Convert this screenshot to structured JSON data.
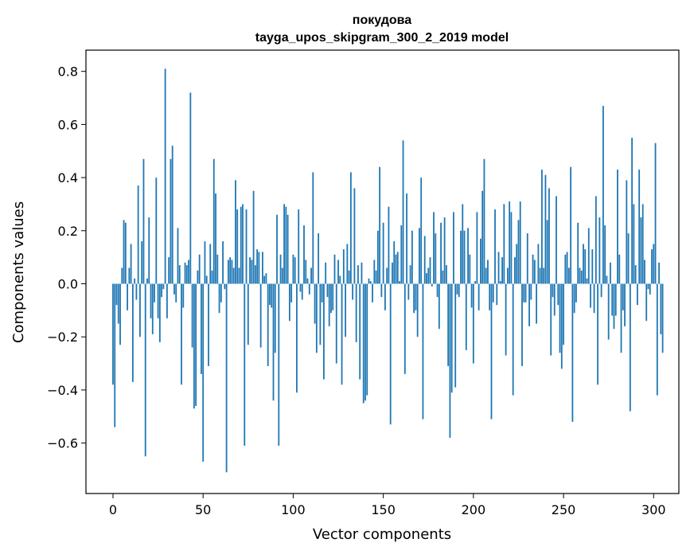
{
  "chart_data": {
    "type": "bar",
    "title": [
      "покудова",
      "tayga_upos_skipgram_300_2_2019 model"
    ],
    "xlabel": "Vector components",
    "ylabel": "Components values",
    "xlim": [
      -15,
      314
    ],
    "ylim": [
      -0.79,
      0.88
    ],
    "xticks": [
      0,
      50,
      100,
      150,
      200,
      250,
      300
    ],
    "xtick_labels": [
      "0",
      "50",
      "100",
      "150",
      "200",
      "250",
      "300"
    ],
    "yticks": [
      -0.6,
      -0.4,
      -0.2,
      0.0,
      0.2,
      0.4,
      0.6,
      0.8
    ],
    "ytick_labels": [
      "−0.6",
      "−0.4",
      "−0.2",
      "0.0",
      "0.2",
      "0.4",
      "0.6",
      "0.8"
    ],
    "grid": false,
    "bar_color": "#1f77b4",
    "values": [
      -0.38,
      -0.54,
      -0.08,
      -0.15,
      -0.23,
      0.06,
      0.24,
      0.23,
      -0.1,
      0.06,
      0.15,
      -0.37,
      0.02,
      -0.06,
      0.37,
      -0.2,
      0.16,
      0.47,
      -0.65,
      0.02,
      0.25,
      -0.13,
      -0.19,
      -0.07,
      0.4,
      -0.13,
      -0.22,
      -0.05,
      -0.02,
      0.81,
      -0.13,
      0.1,
      0.47,
      0.52,
      -0.04,
      -0.07,
      0.21,
      0.07,
      -0.38,
      -0.09,
      0.08,
      0.07,
      0.09,
      0.72,
      -0.24,
      -0.47,
      -0.46,
      0.05,
      0.11,
      -0.34,
      -0.67,
      0.16,
      0.03,
      -0.31,
      0.15,
      0.05,
      0.47,
      0.34,
      0.11,
      -0.11,
      -0.07,
      0.16,
      -0.02,
      -0.71,
      0.09,
      0.1,
      0.09,
      0.06,
      0.39,
      0.28,
      0.06,
      0.29,
      0.3,
      -0.61,
      0.28,
      -0.23,
      0.1,
      0.09,
      0.35,
      0.07,
      0.13,
      0.12,
      -0.24,
      0.12,
      0.03,
      0.04,
      -0.31,
      -0.08,
      -0.09,
      -0.44,
      -0.26,
      0.26,
      -0.61,
      0.11,
      0.06,
      0.3,
      0.29,
      0.26,
      -0.14,
      -0.07,
      0.11,
      0.1,
      -0.41,
      0.28,
      -0.03,
      -0.06,
      0.22,
      0.09,
      0.02,
      -0.04,
      0.06,
      0.42,
      -0.15,
      -0.26,
      0.19,
      -0.23,
      -0.07,
      -0.36,
      0.08,
      -0.05,
      -0.16,
      -0.11,
      -0.1,
      0.11,
      -0.3,
      0.09,
      0.03,
      -0.38,
      0.13,
      -0.2,
      0.15,
      0.05,
      0.42,
      -0.06,
      0.36,
      -0.22,
      0.07,
      -0.36,
      0.08,
      -0.45,
      -0.44,
      -0.42,
      0.02,
      0.01,
      -0.07,
      0.09,
      0.05,
      0.2,
      0.44,
      -0.05,
      0.23,
      -0.1,
      0.06,
      0.29,
      -0.53,
      0.08,
      0.16,
      0.11,
      0.12,
      0.01,
      0.22,
      0.54,
      -0.34,
      0.34,
      -0.06,
      0.07,
      0.2,
      -0.11,
      -0.1,
      -0.2,
      0.21,
      0.4,
      -0.51,
      0.18,
      0.04,
      0.06,
      0.1,
      -0.01,
      0.27,
      0.19,
      -0.05,
      -0.17,
      0.23,
      0.05,
      0.25,
      0.07,
      -0.31,
      -0.58,
      -0.41,
      0.27,
      -0.39,
      -0.04,
      -0.05,
      0.2,
      0.3,
      0.2,
      -0.25,
      0.21,
      0.11,
      -0.09,
      -0.3,
      0.01,
      0.27,
      -0.1,
      0.17,
      0.35,
      0.47,
      0.06,
      0.09,
      -0.1,
      -0.51,
      -0.07,
      0.28,
      -0.08,
      0.12,
      0.01,
      0.1,
      0.3,
      -0.27,
      0.06,
      0.31,
      0.27,
      -0.42,
      0.1,
      0.15,
      0.24,
      0.31,
      -0.31,
      -0.07,
      -0.07,
      0.19,
      -0.16,
      -0.06,
      0.11,
      0.09,
      -0.15,
      0.15,
      0.06,
      0.43,
      0.06,
      0.41,
      0.24,
      0.36,
      -0.27,
      -0.05,
      -0.12,
      0.33,
      -0.08,
      -0.26,
      -0.32,
      -0.23,
      0.11,
      0.12,
      0.06,
      0.44,
      -0.52,
      -0.11,
      -0.07,
      0.23,
      0.06,
      0.05,
      0.15,
      0.13,
      0.02,
      0.21,
      -0.09,
      0.13,
      -0.11,
      0.33,
      -0.38,
      0.25,
      -0.05,
      0.67,
      0.22,
      0.03,
      -0.21,
      0.08,
      -0.12,
      -0.17,
      -0.12,
      0.43,
      0.11,
      -0.26,
      -0.1,
      -0.16,
      0.39,
      0.19,
      -0.48,
      0.55,
      0.3,
      0.07,
      -0.08,
      0.43,
      0.25,
      0.3,
      0.09,
      -0.14,
      -0.02,
      -0.04,
      0.13,
      0.15,
      0.53,
      -0.42,
      0.08,
      -0.19,
      -0.26
    ]
  }
}
